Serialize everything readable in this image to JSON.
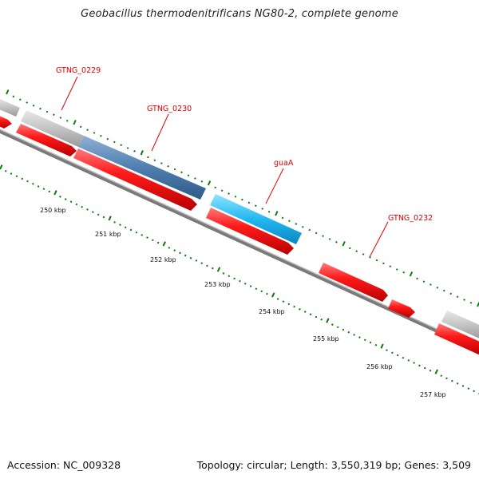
{
  "title": "Geobacillus thermodenitrificans NG80-2, complete genome",
  "footer": {
    "accession": "Accession: NC_009328",
    "summary": "Topology: circular; Length: 3,550,319 bp; Genes: 3,509"
  },
  "colors": {
    "cds_forward": "#ee0000",
    "feature_grey": "#bbbbbb",
    "feature_steelblue": "#4f7fb0",
    "feature_lightblue": "#22b8f0",
    "backbone": "#777777",
    "tick": "#0a7a0a",
    "label": "#e00000"
  },
  "gene_labels": [
    {
      "id": "gtng0229",
      "text": "GTNG_0229"
    },
    {
      "id": "gtng0230",
      "text": "GTNG_0230"
    },
    {
      "id": "guaa",
      "text": "guaA"
    },
    {
      "id": "gtng0232",
      "text": "GTNG_0232"
    }
  ],
  "kbp_ticks": [
    "250 kbp",
    "251 kbp",
    "252 kbp",
    "253 kbp",
    "254 kbp",
    "255 kbp",
    "256 kbp",
    "257 kbp"
  ]
}
